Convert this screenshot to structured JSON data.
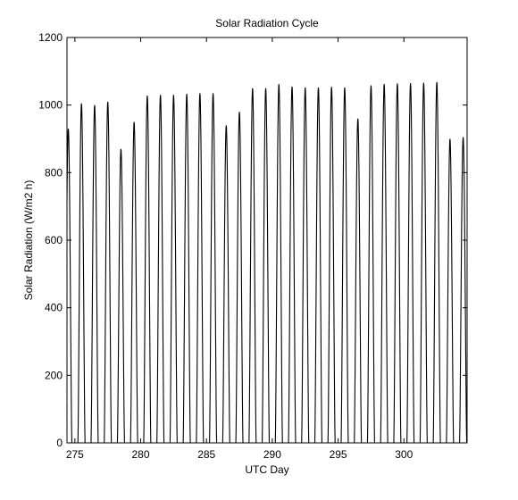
{
  "chart_data": {
    "type": "line",
    "title": "Solar Radiation Cycle",
    "xlabel": "UTC Day",
    "ylabel": "Solar Radiation (W/m2 h)",
    "xlim": [
      274.4,
      304.8
    ],
    "ylim": [
      0,
      1200
    ],
    "xticks": [
      275,
      280,
      285,
      290,
      295,
      300
    ],
    "yticks": [
      0,
      200,
      400,
      600,
      800,
      1000,
      1200
    ],
    "grid": false,
    "legend": "none",
    "line_color": "#000000",
    "series": [
      {
        "x_start": 274.5,
        "x_step": 1,
        "daily_peaks": [
          930,
          1005,
          1000,
          1010,
          870,
          950,
          1028,
          1030,
          1030,
          1033,
          1035,
          1035,
          940,
          980,
          1050,
          1050,
          1062,
          1055,
          1052,
          1052,
          1054,
          1052,
          960,
          1058,
          1062,
          1064,
          1065,
          1066,
          1068,
          900,
          905
        ]
      }
    ]
  }
}
